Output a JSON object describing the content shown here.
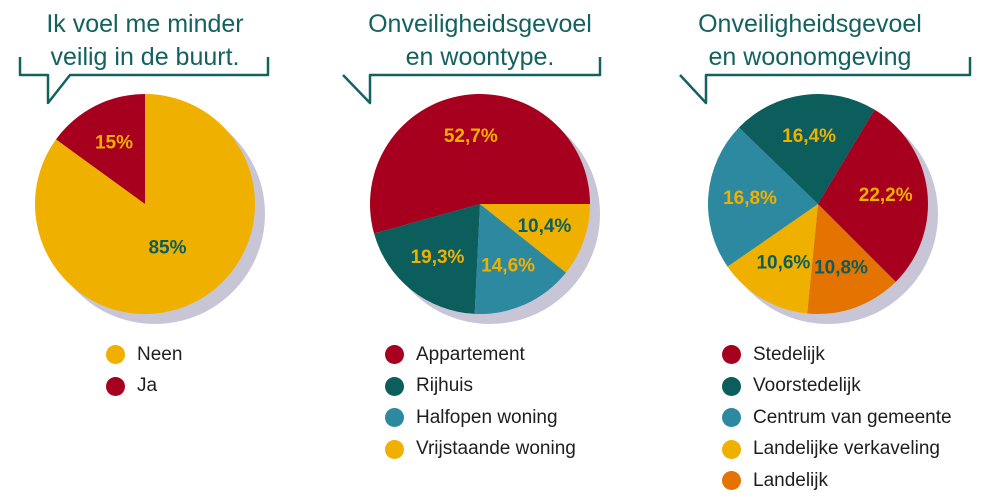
{
  "colors": {
    "teal_text": "#13625f",
    "yellow": "#f0b000",
    "dark_red": "#a6001e",
    "dark_teal": "#0b5e5b",
    "blue": "#2d89a0",
    "orange": "#e47300",
    "shadow": "#c8c6d6"
  },
  "chart_data": [
    {
      "type": "pie",
      "title": "Ik voel me minder\nveilig in de buurt.",
      "slices": [
        {
          "label": "Neen",
          "value": 85,
          "display": "85%",
          "color": "#f0b000",
          "text_color": "#0b5e5b"
        },
        {
          "label": "Ja",
          "value": 15,
          "display": "15%",
          "color": "#a6001e",
          "text_color": "#f0b000"
        }
      ],
      "legend_position": "bottom"
    },
    {
      "type": "pie",
      "title": "Onveiligheidsgevoel\nen woontype.",
      "slices": [
        {
          "label": "Appartement",
          "value": 52.7,
          "display": "52,7%",
          "color": "#a6001e",
          "text_color": "#f0b000"
        },
        {
          "label": "Rijhuis",
          "value": 19.3,
          "display": "19,3%",
          "color": "#0b5e5b",
          "text_color": "#f0b000"
        },
        {
          "label": "Halfopen woning",
          "value": 14.6,
          "display": "14,6%",
          "color": "#2d89a0",
          "text_color": "#f0b000"
        },
        {
          "label": "Vrijstaande woning",
          "value": 10.4,
          "display": "10,4%",
          "color": "#f0b000",
          "text_color": "#0b5e5b"
        }
      ],
      "legend_position": "bottom"
    },
    {
      "type": "pie",
      "title": "Onveiligheidsgevoel\nen woonomgeving",
      "slices": [
        {
          "label": "Stedelijk",
          "value": 22.2,
          "display": "22,2%",
          "color": "#a6001e",
          "text_color": "#f0b000"
        },
        {
          "label": "Voorstedelijk",
          "value": 16.4,
          "display": "16,4%",
          "color": "#0b5e5b",
          "text_color": "#f0b000"
        },
        {
          "label": "Centrum van gemeente",
          "value": 16.8,
          "display": "16,8%",
          "color": "#2d89a0",
          "text_color": "#f0b000"
        },
        {
          "label": "Landelijke verkaveling",
          "value": 10.6,
          "display": "10,6%",
          "color": "#f0b000",
          "text_color": "#0b5e5b"
        },
        {
          "label": "Landelijk",
          "value": 10.8,
          "display": "10,8%",
          "color": "#e47300",
          "text_color": "#0b5e5b"
        }
      ],
      "legend_position": "bottom"
    }
  ]
}
